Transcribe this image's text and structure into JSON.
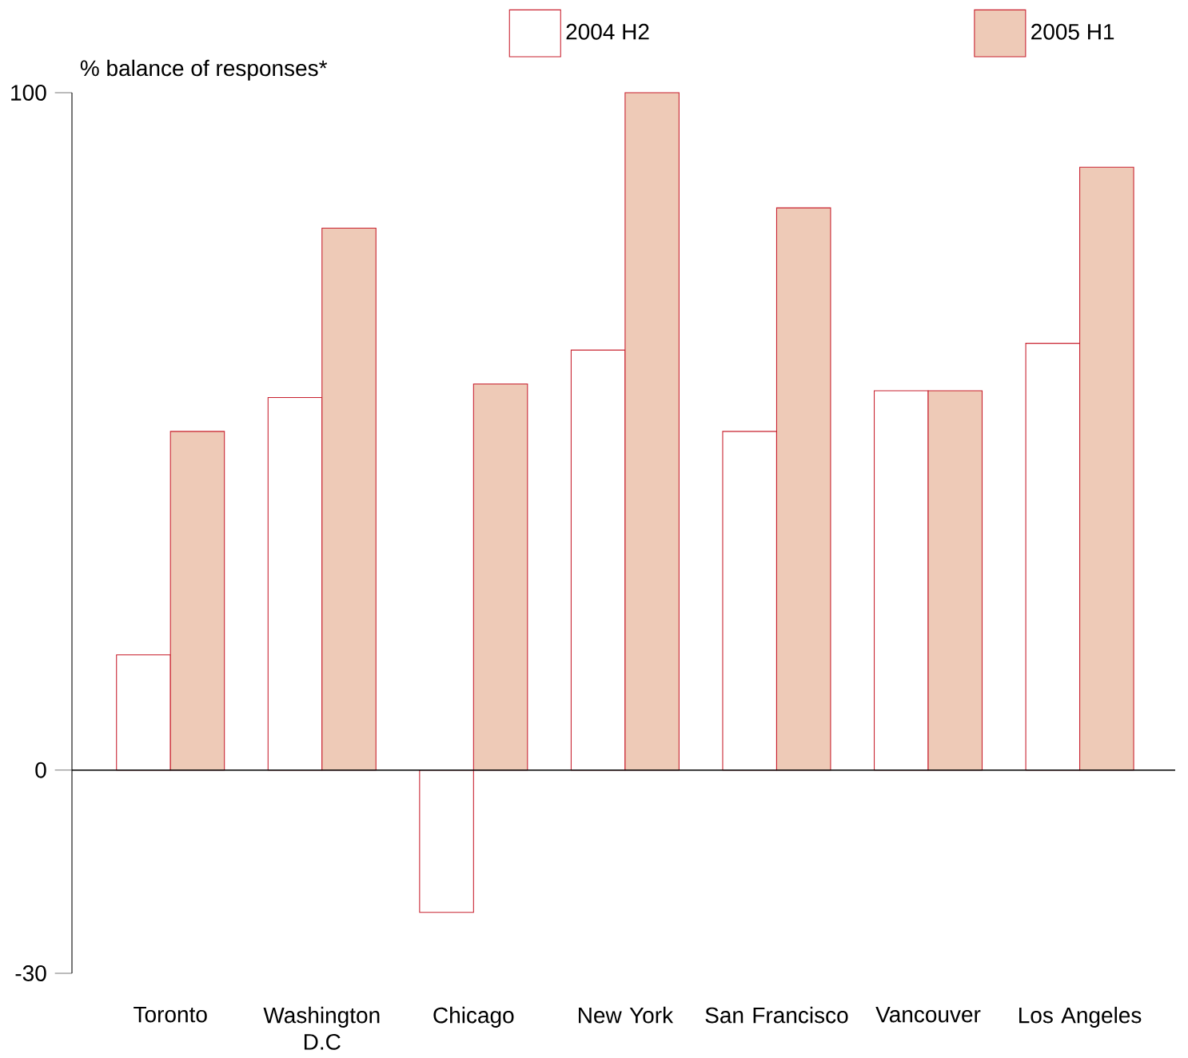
{
  "chart_data": {
    "type": "bar",
    "ylabel": "% balance of responses*",
    "categories": [
      "Toronto",
      "Washington D.C",
      "Chicago",
      "New York",
      "San Francisco",
      "Vancouver",
      "Los Angeles"
    ],
    "series": [
      {
        "name": "2004 H2",
        "color": "#ffffff",
        "values": [
          17,
          55,
          -21,
          62,
          50,
          56,
          63
        ]
      },
      {
        "name": "2005 H1",
        "color": "#eecab7",
        "values": [
          50,
          80,
          57,
          100,
          83,
          56,
          89
        ]
      }
    ],
    "ylim": [
      -30,
      100
    ],
    "yticks": [
      -30,
      0,
      100
    ],
    "legend": "top"
  }
}
